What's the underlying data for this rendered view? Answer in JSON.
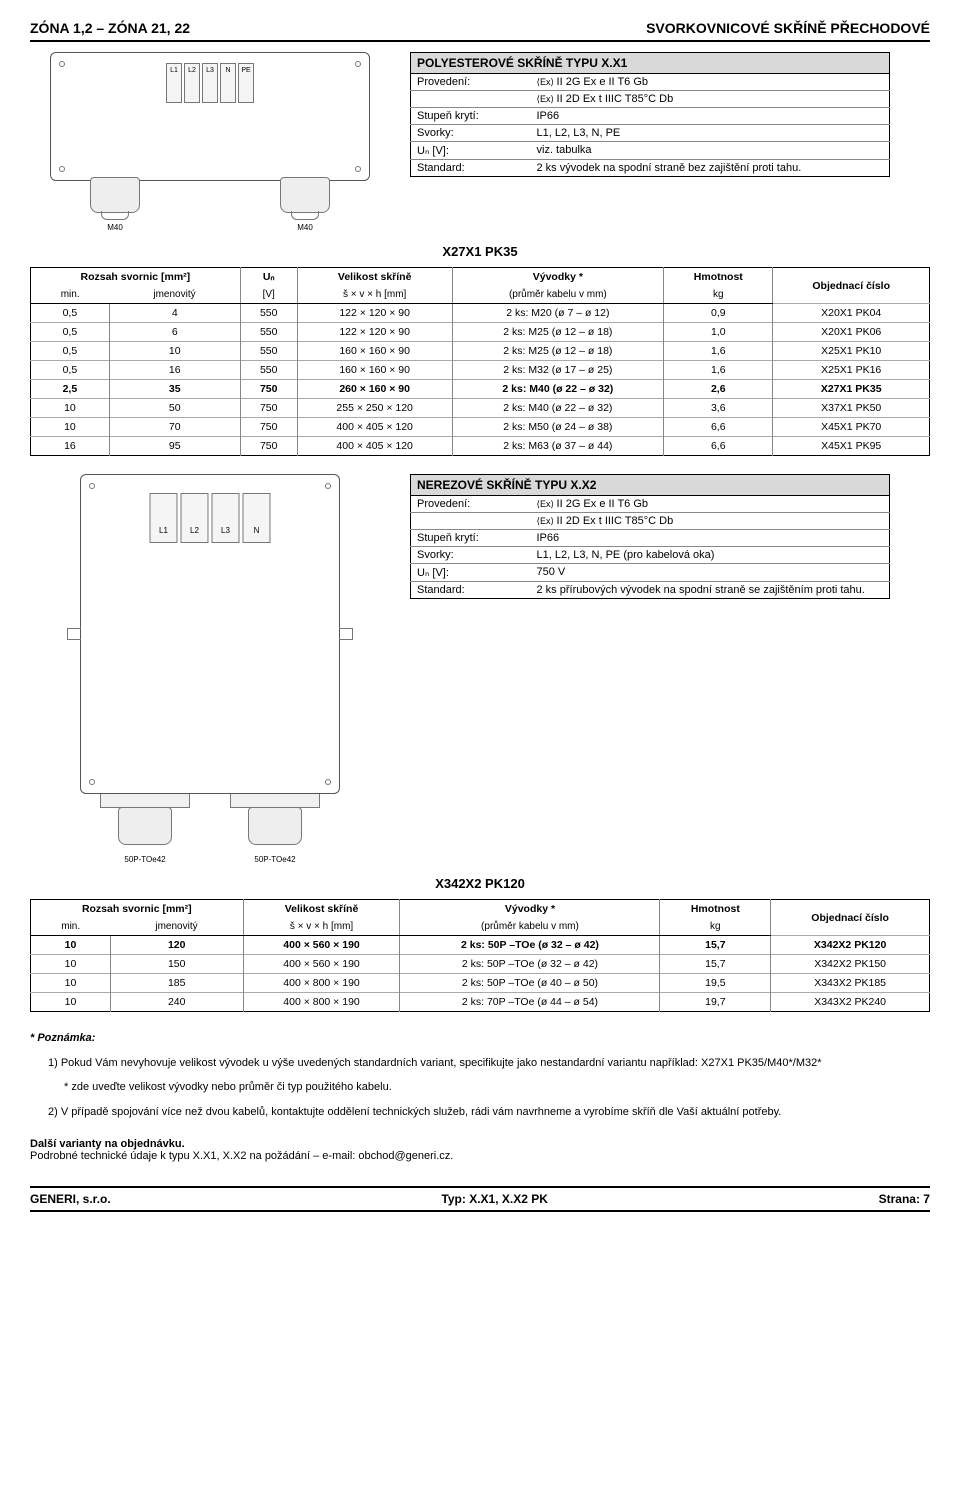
{
  "header": {
    "left": "ZÓNA 1,2 – ZÓNA 21, 22",
    "right": "SVORKOVNICOVÉ SKŘÍNĚ PŘECHODOVÉ"
  },
  "diagram1": {
    "terminals": [
      "L1",
      "L2",
      "L3",
      "N",
      "PE"
    ],
    "gland_left_label": "M40",
    "gland_right_label": "M40"
  },
  "spec1": {
    "title": "POLYESTEROVÉ SKŘÍNĚ TYPU X.X1",
    "rows": [
      {
        "k": "Provedení:",
        "v": "II 2G Ex e II T6 Gb",
        "ex": true
      },
      {
        "k": "",
        "v": "II 2D Ex t IIIC T85°C Db",
        "ex": true
      },
      {
        "k": "Stupeň krytí:",
        "v": "IP66"
      },
      {
        "k": "Svorky:",
        "v": "L1, L2, L3, N, PE"
      },
      {
        "k": "Uₙ [V]:",
        "v": "viz. tabulka"
      },
      {
        "k": "Standard:",
        "v": "2 ks vývodek na spodní straně bez zajištění proti tahu."
      }
    ]
  },
  "model1": "X27X1 PK35",
  "table1": {
    "headers1": [
      "Rozsah svornic [mm²]",
      "Uₙ",
      "Velikost skříně",
      "Vývodky *",
      "Hmotnost",
      "Objednací číslo"
    ],
    "headers2": [
      "min.",
      "jmenovitý",
      "[V]",
      "š × v × h [mm]",
      "(průměr kabelu v mm)",
      "kg",
      ""
    ],
    "rows": [
      [
        "0,5",
        "4",
        "550",
        "122 × 120 × 90",
        "2 ks: M20 (ø 7 – ø 12)",
        "0,9",
        "X20X1 PK04"
      ],
      [
        "0,5",
        "6",
        "550",
        "122 × 120 × 90",
        "2 ks: M25 (ø 12 – ø 18)",
        "1,0",
        "X20X1 PK06"
      ],
      [
        "0,5",
        "10",
        "550",
        "160 × 160 × 90",
        "2 ks: M25 (ø 12 – ø 18)",
        "1,6",
        "X25X1 PK10"
      ],
      [
        "0,5",
        "16",
        "550",
        "160 × 160 × 90",
        "2 ks: M32 (ø 17 – ø 25)",
        "1,6",
        "X25X1 PK16"
      ],
      [
        "2,5",
        "35",
        "750",
        "260 × 160 × 90",
        "2 ks: M40 (ø 22 – ø 32)",
        "2,6",
        "X27X1 PK35"
      ],
      [
        "10",
        "50",
        "750",
        "255 × 250 × 120",
        "2 ks: M40 (ø 22 – ø 32)",
        "3,6",
        "X37X1 PK50"
      ],
      [
        "10",
        "70",
        "750",
        "400 × 405 × 120",
        "2 ks: M50 (ø 24 – ø 38)",
        "6,6",
        "X45X1 PK70"
      ],
      [
        "16",
        "95",
        "750",
        "400 × 405 × 120",
        "2 ks: M63 (ø 37 – ø 44)",
        "6,6",
        "X45X1 PK95"
      ]
    ],
    "bold_row_index": 4
  },
  "diagram2": {
    "terminals": [
      "L1",
      "L2",
      "L3",
      "N"
    ],
    "flange_left_label": "50P-TOe42",
    "flange_right_label": "50P-TOe42"
  },
  "spec2": {
    "title": "NEREZOVÉ SKŘÍNĚ TYPU X.X2",
    "rows": [
      {
        "k": "Provedení:",
        "v": "II 2G Ex e II T6 Gb",
        "ex": true
      },
      {
        "k": "",
        "v": "II 2D Ex t IIIC T85°C Db",
        "ex": true
      },
      {
        "k": "Stupeň krytí:",
        "v": "IP66"
      },
      {
        "k": "Svorky:",
        "v": "L1, L2, L3, N, PE (pro kabelová oka)"
      },
      {
        "k": "Uₙ [V]:",
        "v": "750 V"
      },
      {
        "k": "Standard:",
        "v": "2 ks přírubových vývodek na spodní straně se zajištěním proti tahu."
      }
    ]
  },
  "model2": "X342X2 PK120",
  "table2": {
    "headers1": [
      "Rozsah svornic [mm²]",
      "Velikost skříně",
      "Vývodky *",
      "Hmotnost",
      "Objednací číslo"
    ],
    "headers2": [
      "min.",
      "jmenovitý",
      "š × v × h [mm]",
      "(průměr kabelu v mm)",
      "kg",
      ""
    ],
    "rows": [
      [
        "10",
        "120",
        "400 × 560 × 190",
        "2 ks: 50P –TOe (ø 32 – ø 42)",
        "15,7",
        "X342X2 PK120"
      ],
      [
        "10",
        "150",
        "400 × 560 × 190",
        "2 ks: 50P –TOe (ø 32 – ø 42)",
        "15,7",
        "X342X2 PK150"
      ],
      [
        "10",
        "185",
        "400 × 800 × 190",
        "2 ks: 50P –TOe (ø 40 – ø 50)",
        "19,5",
        "X343X2 PK185"
      ],
      [
        "10",
        "240",
        "400 × 800 × 190",
        "2 ks: 70P –TOe (ø 44 – ø 54)",
        "19,7",
        "X343X2 PK240"
      ]
    ],
    "bold_row_index": 0
  },
  "notes": {
    "heading": "* Poznámka:",
    "n1": "1) Pokud Vám nevyhovuje velikost vývodek u výše uvedených standardních variant, specifikujte jako nestandardní variantu například: X27X1 PK35/M40*/M32*",
    "n1b": "* zde uveďte velikost vývodky nebo průměr či typ použitého kabelu.",
    "n2": "2) V případě spojování více než dvou kabelů, kontaktujte oddělení technických služeb, rádi vám navrhneme a vyrobíme skříň dle Vaší aktuální potřeby."
  },
  "footer_pre": {
    "l1": "Další varianty na objednávku.",
    "l2": "Podrobné technické údaje k typu X.X1, X.X2 na požádání – e-mail: obchod@generi.cz."
  },
  "footer": {
    "left": "GENERI, s.r.o.",
    "center": "Typ: X.X1, X.X2 PK",
    "right": "Strana: 7"
  }
}
